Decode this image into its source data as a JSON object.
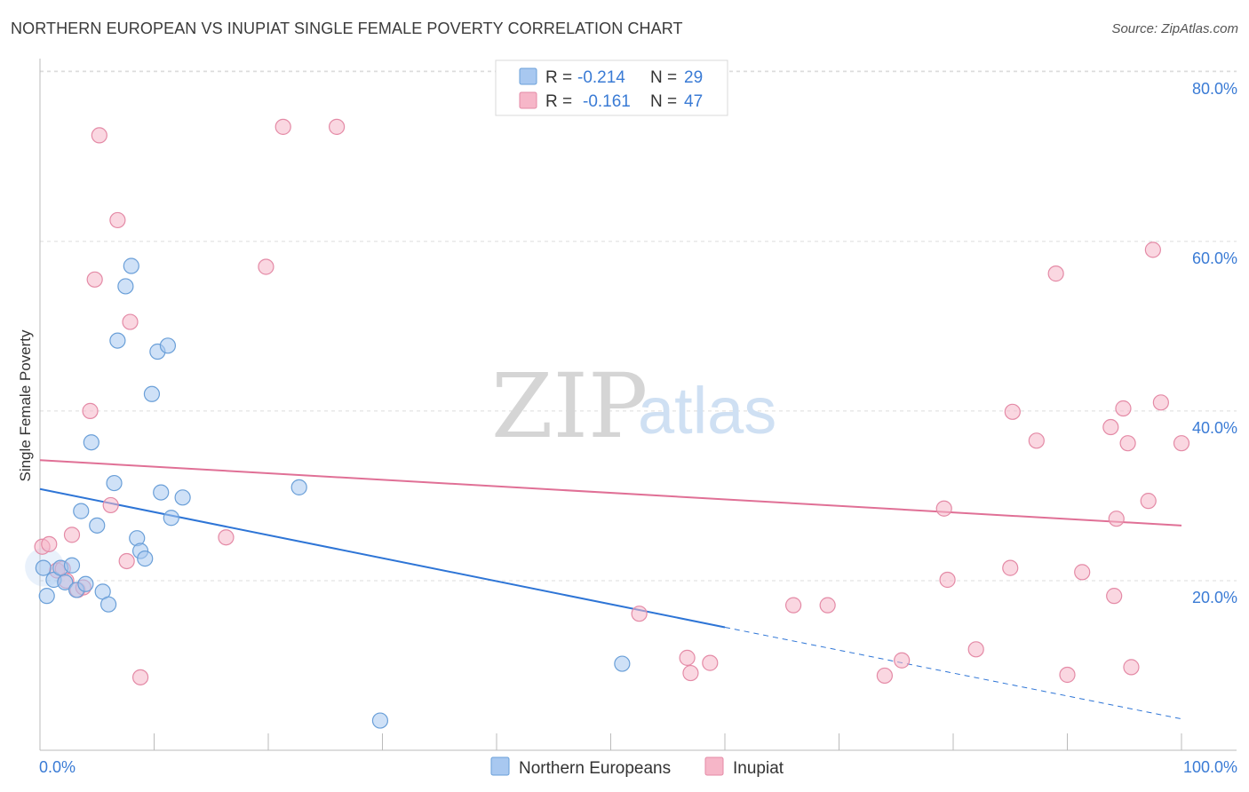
{
  "title": "NORTHERN EUROPEAN VS INUPIAT SINGLE FEMALE POVERTY CORRELATION CHART",
  "source": "Source: ZipAtlas.com",
  "watermark": {
    "zip": "ZIP",
    "atlas": "atlas"
  },
  "legend_top": [
    {
      "r_label": "R =",
      "r_value": "-0.214",
      "n_label": "N =",
      "n_value": "29",
      "color": "#a8c8f0"
    },
    {
      "r_label": "R =",
      "r_value": "-0.161",
      "n_label": "N =",
      "n_value": "47",
      "color": "#f6b6c8"
    }
  ],
  "legend_bottom": [
    {
      "label": "Northern Europeans",
      "color": "#a8c8f0"
    },
    {
      "label": "Inupiat",
      "color": "#f6b6c8"
    }
  ],
  "colors": {
    "blue_fill": "#a8c8f0",
    "blue_stroke": "#6a9fd8",
    "blue_line": "#2e75d6",
    "pink_fill": "#f6b6c8",
    "pink_stroke": "#e48aa6",
    "pink_line": "#e07096",
    "axis_text": "#3a7bd5"
  },
  "chart_data": {
    "type": "scatter",
    "xlabel": "",
    "ylabel": "Single Female Poverty",
    "xlim": [
      0,
      100
    ],
    "ylim": [
      0,
      80
    ],
    "x_tick_labels": [
      "0.0%",
      "100.0%"
    ],
    "y_tick_labels": [
      "20.0%",
      "40.0%",
      "60.0%",
      "80.0%"
    ],
    "y_ticks": [
      20,
      40,
      60,
      80
    ],
    "grid": true,
    "series": [
      {
        "name": "Northern Europeans",
        "points": [
          [
            0.6,
            18.2
          ],
          [
            1.2,
            20.1
          ],
          [
            1.8,
            21.5
          ],
          [
            2.2,
            19.8
          ],
          [
            2.8,
            21.8
          ],
          [
            3.2,
            18.9
          ],
          [
            3.6,
            28.2
          ],
          [
            4.0,
            19.6
          ],
          [
            4.5,
            36.3
          ],
          [
            5.0,
            26.5
          ],
          [
            5.5,
            18.7
          ],
          [
            6.0,
            17.2
          ],
          [
            6.5,
            31.5
          ],
          [
            6.8,
            48.3
          ],
          [
            7.5,
            54.7
          ],
          [
            8.0,
            57.1
          ],
          [
            8.5,
            25.0
          ],
          [
            8.8,
            23.5
          ],
          [
            9.2,
            22.6
          ],
          [
            9.8,
            42.0
          ],
          [
            10.3,
            47.0
          ],
          [
            10.6,
            30.4
          ],
          [
            11.2,
            47.7
          ],
          [
            11.5,
            27.4
          ],
          [
            12.5,
            29.8
          ],
          [
            22.7,
            31.0
          ],
          [
            29.8,
            3.5
          ],
          [
            51.0,
            10.2
          ],
          [
            0.3,
            21.5
          ]
        ]
      },
      {
        "name": "Inupiat",
        "points": [
          [
            0.2,
            24.0
          ],
          [
            0.8,
            24.3
          ],
          [
            1.5,
            21.2
          ],
          [
            2.0,
            21.4
          ],
          [
            2.3,
            20.0
          ],
          [
            2.8,
            25.4
          ],
          [
            3.3,
            18.9
          ],
          [
            3.8,
            19.2
          ],
          [
            4.4,
            40.0
          ],
          [
            4.8,
            55.5
          ],
          [
            5.2,
            72.5
          ],
          [
            6.2,
            28.9
          ],
          [
            6.8,
            62.5
          ],
          [
            7.6,
            22.3
          ],
          [
            7.9,
            50.5
          ],
          [
            8.8,
            8.6
          ],
          [
            16.3,
            25.1
          ],
          [
            19.8,
            57.0
          ],
          [
            21.3,
            73.5
          ],
          [
            26.0,
            73.5
          ],
          [
            52.5,
            16.1
          ],
          [
            56.7,
            10.9
          ],
          [
            57.0,
            9.1
          ],
          [
            58.7,
            10.3
          ],
          [
            66.0,
            17.1
          ],
          [
            69.0,
            17.1
          ],
          [
            74.0,
            8.8
          ],
          [
            75.5,
            10.6
          ],
          [
            79.2,
            28.5
          ],
          [
            79.5,
            20.1
          ],
          [
            82.0,
            11.9
          ],
          [
            85.0,
            21.5
          ],
          [
            85.2,
            39.9
          ],
          [
            87.3,
            36.5
          ],
          [
            89.0,
            56.2
          ],
          [
            90.0,
            8.9
          ],
          [
            91.3,
            21.0
          ],
          [
            93.8,
            38.1
          ],
          [
            94.1,
            18.2
          ],
          [
            94.3,
            27.3
          ],
          [
            94.9,
            40.3
          ],
          [
            95.3,
            36.2
          ],
          [
            95.6,
            9.8
          ],
          [
            97.1,
            29.4
          ],
          [
            97.5,
            59.0
          ],
          [
            98.2,
            41.0
          ],
          [
            100.0,
            36.2
          ]
        ]
      }
    ],
    "trend_lines": [
      {
        "series": "Northern Europeans",
        "x0": 0,
        "y0": 30.8,
        "x1": 60,
        "y1": 14.5,
        "dashed_to_x": 100,
        "dashed_to_y": 3.7
      },
      {
        "series": "Inupiat",
        "x0": 0,
        "y0": 34.2,
        "x1": 100,
        "y1": 26.5
      }
    ]
  }
}
